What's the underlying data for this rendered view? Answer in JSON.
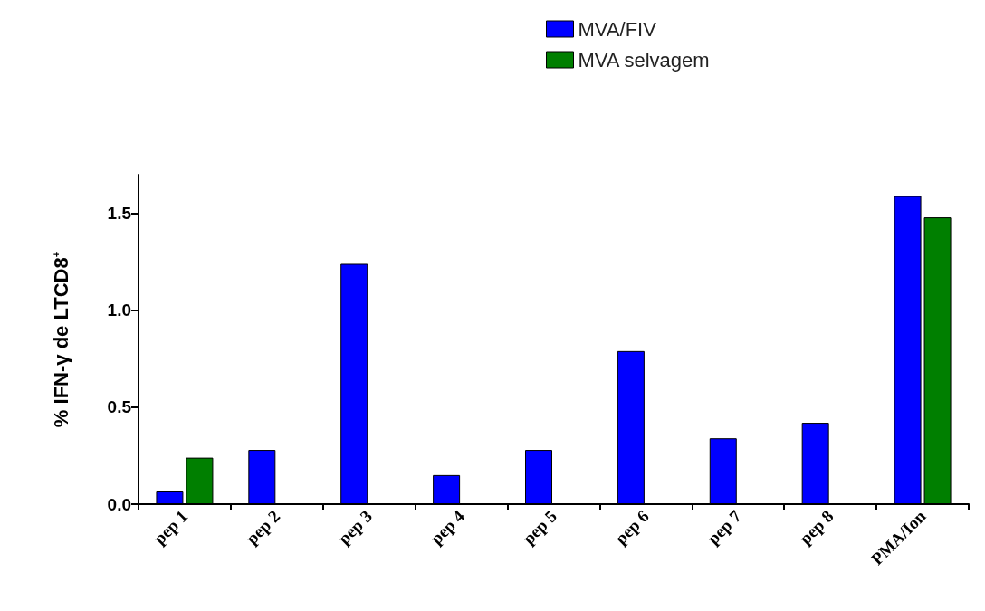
{
  "chart_data": {
    "type": "bar",
    "ylabel": "% IFN-γ de LTCD8$^{+}$",
    "categories": [
      "pep 1",
      "pep 2",
      "pep 3",
      "pep 4",
      "pep 5",
      "pep 6",
      "pep 7",
      "pep 8",
      "PMA/Ion"
    ],
    "series": [
      {
        "name": "MVA/FIV",
        "color": "#0000ff",
        "values": [
          0.07,
          0.28,
          1.24,
          0.15,
          0.28,
          0.79,
          0.34,
          0.42,
          1.59
        ]
      },
      {
        "name": "MVA selvagem",
        "color": "#007f00",
        "values": [
          0.24,
          null,
          null,
          null,
          null,
          null,
          null,
          null,
          1.48
        ]
      }
    ],
    "ylim": [
      0,
      1.7
    ],
    "yticks": [
      {
        "value": 0,
        "label": "0.0"
      },
      {
        "value": 0.5,
        "label": "0.5"
      },
      {
        "value": 1,
        "label": "1.0"
      },
      {
        "value": 1.5,
        "label": "1.5"
      }
    ],
    "grid": false,
    "legend": "top right"
  }
}
